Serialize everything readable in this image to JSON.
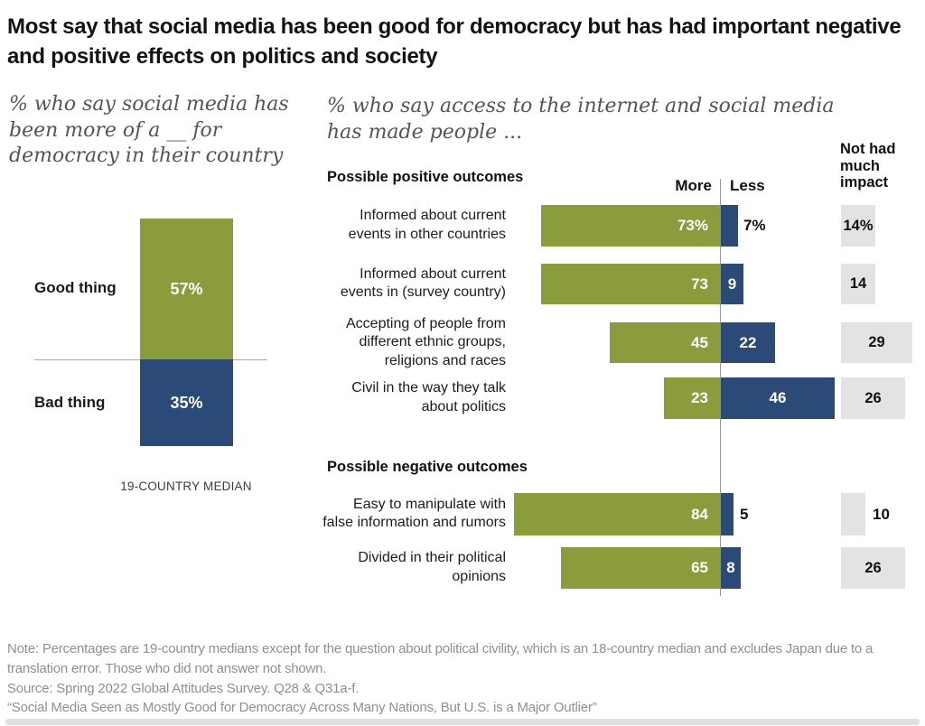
{
  "title": "Most say that social media has been good for democracy but has had important negative and positive effects on politics and society",
  "left_chart": {
    "subtitle": "% who say social media has been more of a __ for democracy in their country",
    "rows": [
      {
        "label": "Good thing",
        "value": 57,
        "value_label": "57%"
      },
      {
        "label": "Bad thing",
        "value": 35,
        "value_label": "35%"
      }
    ],
    "caption": "19-COUNTRY MEDIAN"
  },
  "right_chart": {
    "subtitle": "% who say access to the internet and social media has made people ...",
    "columns": {
      "more": "More",
      "less": "Less",
      "impact": "Not had much impact"
    },
    "sections": [
      {
        "header": "Possible positive outcomes"
      },
      {
        "header": "Possible negative outcomes"
      }
    ],
    "rows": [
      {
        "label": "Informed about current events in other countries",
        "more": 73,
        "less": 7,
        "impact": 14,
        "more_label": "73%",
        "less_label": "7%",
        "impact_label": "14%"
      },
      {
        "label": "Informed about current events in (survey country)",
        "more": 73,
        "less": 9,
        "impact": 14,
        "more_label": "73",
        "less_label": "9",
        "impact_label": "14"
      },
      {
        "label": "Accepting of people from different ethnic groups, religions and races",
        "more": 45,
        "less": 22,
        "impact": 29,
        "more_label": "45",
        "less_label": "22",
        "impact_label": "29"
      },
      {
        "label": "Civil in the way they talk about politics",
        "more": 23,
        "less": 46,
        "impact": 26,
        "more_label": "23",
        "less_label": "46",
        "impact_label": "26"
      },
      {
        "label": "Easy to manipulate with false information and rumors",
        "more": 84,
        "less": 5,
        "impact": 10,
        "more_label": "84",
        "less_label": "5",
        "impact_label": "10"
      },
      {
        "label": "Divided in their political opinions",
        "more": 65,
        "less": 8,
        "impact": 26,
        "more_label": "65",
        "less_label": "8",
        "impact_label": "26"
      }
    ]
  },
  "footer": {
    "note": "Note: Percentages are 19-country medians except for the question about political civility, which is an 18-country median and excludes Japan due to a translation error. Those who did not answer not shown.",
    "source": "Source: Spring 2022 Global Attitudes Survey. Q28 & Q31a-f.",
    "quote": "“Social Media Seen as Mostly Good for Democracy Across Many Nations, But U.S. is a Major Outlier”"
  },
  "colors": {
    "green": "#8a9c3c",
    "blue": "#2b4a78",
    "impact_gray": "#e3e3e3"
  },
  "chart_data": [
    {
      "type": "bar",
      "subtype": "stacked-vertical-single-column",
      "title": "% who say social media has been more of a __ for democracy in their country",
      "categories": [
        "Good thing",
        "Bad thing"
      ],
      "values": [
        57,
        35
      ],
      "unit": "%",
      "annotation": "19-COUNTRY MEDIAN",
      "colors": [
        "#8a9c3c",
        "#2b4a78"
      ],
      "legend_position": "left-of-bar"
    },
    {
      "type": "bar",
      "subtype": "diverging-horizontal",
      "title": "% who say access to the internet and social media has made people ...",
      "categories": [
        "Informed about current events in other countries",
        "Informed about current events in (survey country)",
        "Accepting of people from different ethnic groups, religions and races",
        "Civil in the way they talk about politics",
        "Easy to manipulate with false information and rumors",
        "Divided in their political opinions"
      ],
      "series": [
        {
          "name": "More",
          "values": [
            73,
            73,
            45,
            23,
            84,
            65
          ],
          "color": "#8a9c3c"
        },
        {
          "name": "Less",
          "values": [
            7,
            9,
            22,
            46,
            5,
            8
          ],
          "color": "#2b4a78"
        },
        {
          "name": "Not had much impact",
          "values": [
            14,
            14,
            29,
            26,
            10,
            26
          ],
          "color": "#e3e3e3"
        }
      ],
      "groups": [
        {
          "header": "Possible positive outcomes",
          "category_indexes": [
            0,
            1,
            2,
            3
          ]
        },
        {
          "header": "Possible negative outcomes",
          "category_indexes": [
            4,
            5
          ]
        }
      ],
      "unit": "%",
      "xlim": [
        0,
        100
      ],
      "grid": false
    }
  ]
}
